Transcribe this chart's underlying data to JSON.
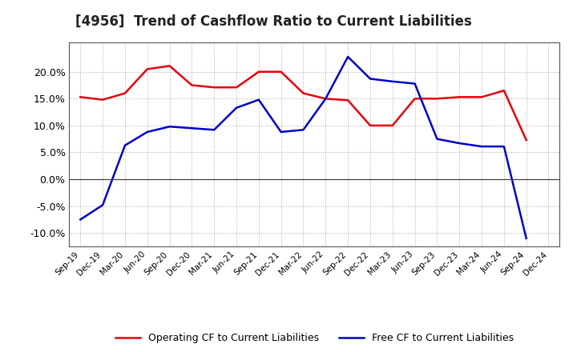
{
  "title": "[4956]  Trend of Cashflow Ratio to Current Liabilities",
  "x_labels": [
    "Sep-19",
    "Dec-19",
    "Mar-20",
    "Jun-20",
    "Sep-20",
    "Dec-20",
    "Mar-21",
    "Jun-21",
    "Sep-21",
    "Dec-21",
    "Mar-22",
    "Jun-22",
    "Sep-22",
    "Dec-22",
    "Mar-23",
    "Jun-23",
    "Sep-23",
    "Dec-23",
    "Mar-24",
    "Jun-24",
    "Sep-24",
    "Dec-24"
  ],
  "operating_cf": [
    0.153,
    0.148,
    0.16,
    0.205,
    0.211,
    0.175,
    0.171,
    0.171,
    0.2,
    0.2,
    0.16,
    0.15,
    0.147,
    0.1,
    0.1,
    0.15,
    0.15,
    0.153,
    0.153,
    0.165,
    0.073,
    null
  ],
  "free_cf": [
    -0.075,
    -0.048,
    0.063,
    0.088,
    0.098,
    0.095,
    0.092,
    0.133,
    0.148,
    0.088,
    0.092,
    0.15,
    0.228,
    0.187,
    0.182,
    0.178,
    0.075,
    0.067,
    0.061,
    0.061,
    -0.11,
    null
  ],
  "operating_color": "#e8000d",
  "free_color": "#0000cc",
  "ylim": [
    -0.125,
    0.255
  ],
  "yticks": [
    -0.1,
    -0.05,
    0.0,
    0.05,
    0.1,
    0.15,
    0.2
  ],
  "background_color": "#ffffff",
  "grid_color": "#aaaaaa",
  "legend_operating": "Operating CF to Current Liabilities",
  "legend_free": "Free CF to Current Liabilities",
  "title_fontsize": 12,
  "line_width": 1.8
}
